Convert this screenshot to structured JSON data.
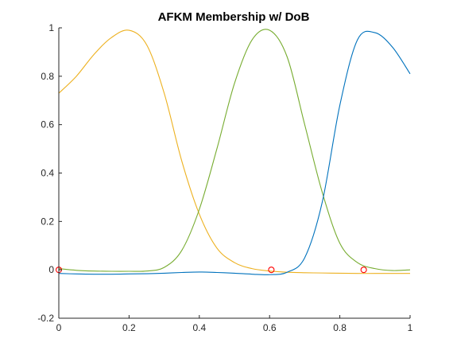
{
  "chart_data": {
    "type": "line",
    "title": "AFKM Membership w/ DoB",
    "xlabel": "",
    "ylabel": "",
    "xlim": [
      0,
      1
    ],
    "ylim": [
      -0.2,
      1
    ],
    "xticks": [
      0,
      0.2,
      0.4,
      0.6,
      0.8,
      1
    ],
    "yticks": [
      -0.2,
      0,
      0.2,
      0.4,
      0.6,
      0.8,
      1
    ],
    "xtick_labels": [
      "0",
      "0.2",
      "0.4",
      "0.6",
      "0.8",
      "1"
    ],
    "ytick_labels": [
      "-0.2",
      "0",
      "0.2",
      "0.4",
      "0.6",
      "0.8",
      "1"
    ],
    "grid": false,
    "series": [
      {
        "color": "#EDB120",
        "x": [
          0,
          0.05,
          0.1,
          0.15,
          0.2,
          0.25,
          0.3,
          0.35,
          0.4,
          0.45,
          0.5,
          0.55,
          0.6,
          0.65,
          0.7,
          0.75,
          0.8,
          0.85,
          0.9,
          0.95,
          1
        ],
        "y": [
          0.73,
          0.8,
          0.89,
          0.96,
          0.99,
          0.93,
          0.73,
          0.45,
          0.23,
          0.09,
          0.03,
          0.005,
          -0.005,
          -0.01,
          -0.012,
          -0.013,
          -0.014,
          -0.015,
          -0.015,
          -0.015,
          -0.015
        ]
      },
      {
        "color": "#77AC30",
        "x": [
          0,
          0.05,
          0.1,
          0.15,
          0.2,
          0.25,
          0.3,
          0.35,
          0.4,
          0.45,
          0.5,
          0.55,
          0.6,
          0.65,
          0.7,
          0.75,
          0.8,
          0.85,
          0.9,
          0.95,
          1
        ],
        "y": [
          0.005,
          -0.002,
          -0.005,
          -0.006,
          -0.006,
          -0.005,
          0.01,
          0.08,
          0.25,
          0.5,
          0.77,
          0.95,
          0.99,
          0.88,
          0.6,
          0.32,
          0.11,
          0.03,
          0.005,
          -0.003,
          0.0
        ]
      },
      {
        "color": "#0072BD",
        "x": [
          0,
          0.05,
          0.1,
          0.15,
          0.2,
          0.25,
          0.3,
          0.35,
          0.4,
          0.45,
          0.5,
          0.55,
          0.6,
          0.65,
          0.7,
          0.75,
          0.8,
          0.85,
          0.9,
          0.95,
          1
        ],
        "y": [
          -0.015,
          -0.017,
          -0.018,
          -0.018,
          -0.017,
          -0.016,
          -0.014,
          -0.011,
          -0.009,
          -0.011,
          -0.014,
          -0.018,
          -0.02,
          -0.01,
          0.05,
          0.28,
          0.68,
          0.95,
          0.98,
          0.92,
          0.81
        ]
      }
    ],
    "markers": {
      "color": "#FF0000",
      "points": [
        {
          "x": 0.0,
          "y": 0.0
        },
        {
          "x": 0.605,
          "y": 0.0
        },
        {
          "x": 0.868,
          "y": 0.0
        }
      ]
    }
  }
}
